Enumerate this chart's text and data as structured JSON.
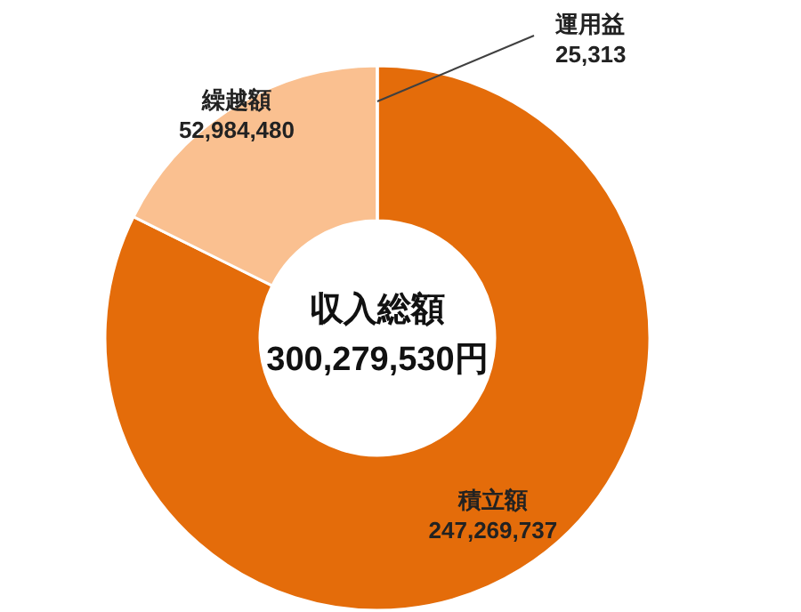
{
  "chart_data": {
    "type": "donut",
    "categories": [
      "積立額",
      "繰越額",
      "運用益"
    ],
    "values": [
      247269737,
      52984480,
      25313
    ],
    "colors": [
      "#e46c0a",
      "#fac090",
      "#e46c0a"
    ],
    "value_labels": [
      "247,269,737",
      "52,984,480",
      "25,313"
    ],
    "annotations": [
      "収入総額",
      "300,279,530円"
    ]
  }
}
